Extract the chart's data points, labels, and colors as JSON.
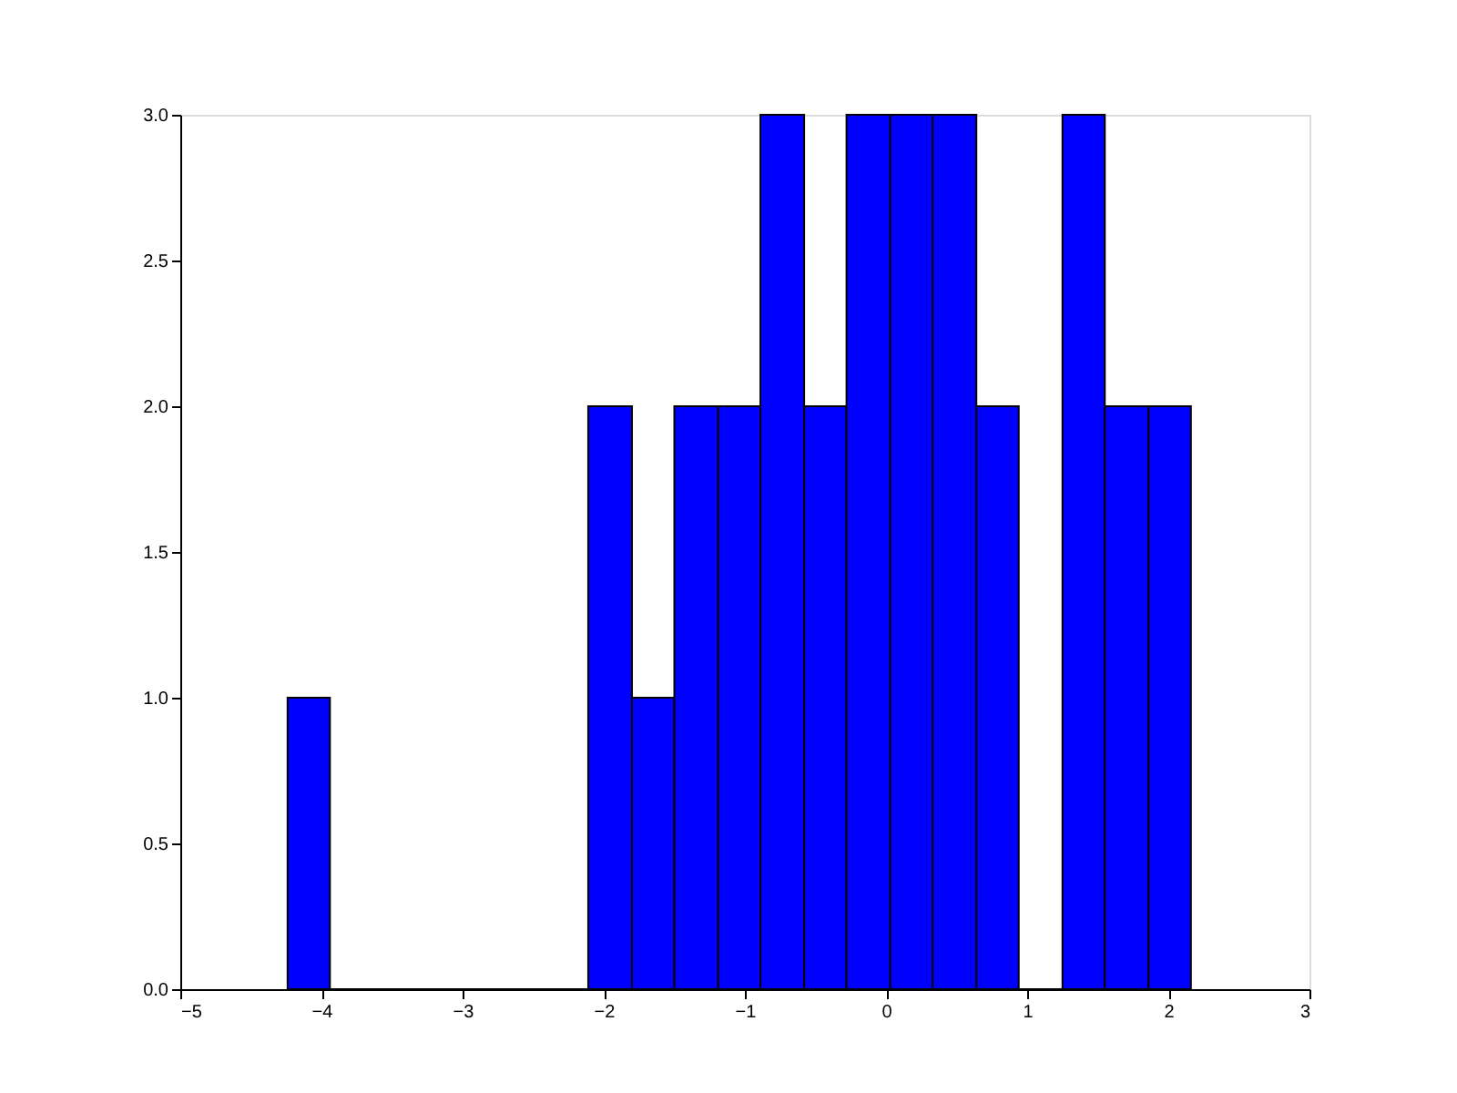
{
  "chart_data": {
    "type": "histogram",
    "bins": [
      -4.24,
      -3.94,
      -2.11,
      -1.8,
      -1.5,
      -1.19,
      -0.89,
      -0.58,
      -0.28,
      0.03,
      0.33,
      0.64,
      0.94,
      1.25,
      1.55,
      1.86,
      2.16
    ],
    "values": [
      1,
      0,
      2,
      1,
      2,
      2,
      3,
      2,
      3,
      3,
      3,
      2,
      0,
      3,
      2,
      2
    ],
    "color": "#0000ff",
    "xlim": [
      -5,
      3
    ],
    "xticks": [
      {
        "value": -5,
        "label": "−5"
      },
      {
        "value": -4,
        "label": "−4"
      },
      {
        "value": -3,
        "label": "−3"
      },
      {
        "value": -2,
        "label": "−2"
      },
      {
        "value": -1,
        "label": "−1"
      },
      0,
      1,
      2,
      3
    ],
    "ylim": [
      0,
      3
    ],
    "yticks": [
      {
        "value": 0,
        "label": "0.0"
      },
      {
        "value": 0.5,
        "label": "0.5"
      },
      {
        "value": 1,
        "label": "1.0"
      },
      {
        "value": 1.5,
        "label": "1.5"
      },
      {
        "value": 2,
        "label": "2.0"
      },
      {
        "value": 2.5,
        "label": "2.5"
      },
      {
        "value": 3,
        "label": "3.0"
      }
    ],
    "grid": false
  }
}
